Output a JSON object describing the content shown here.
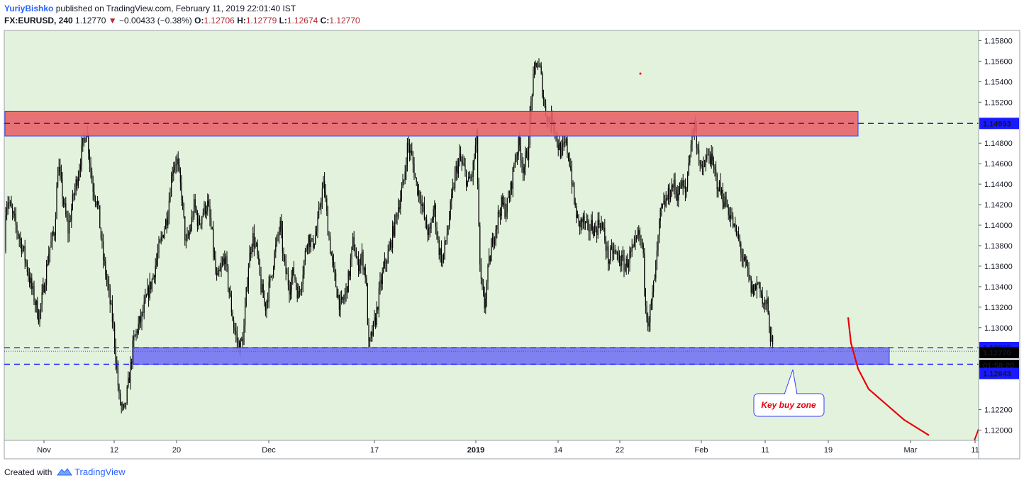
{
  "header": {
    "author": "YuriyBishko",
    "published": "published on TradingView.com, February 11, 2019 22:01:40 IST",
    "symbol": "FX:EURUSD, 240",
    "last": "1.12770",
    "change_arrow": "▼",
    "change": "−0.00433 (−0.38%)",
    "open_label": "O:",
    "open": "1.12706",
    "high_label": "H:",
    "high": "1.12779",
    "low_label": "L:",
    "low": "1.12674",
    "close_label": "C:",
    "close": "1.12770"
  },
  "footer": {
    "created_with": "Created with",
    "brand": "TradingView"
  },
  "colors": {
    "background": "#e2f2dc",
    "resistance_zone": "#e8646a",
    "support_zone": "#7a7af0",
    "dashed_line": "#1a1aff",
    "candles": "#000000",
    "forecast_arrow": "#e8000b"
  },
  "chart_data": {
    "type": "candlestick",
    "instrument": "FX:EURUSD",
    "timeframe": "240",
    "ylim": [
      1.119,
      1.159
    ],
    "y_ticks": [
      "1.15800",
      "1.15600",
      "1.15400",
      "1.15200",
      "1.14800",
      "1.14600",
      "1.14400",
      "1.14200",
      "1.14000",
      "1.13800",
      "1.13600",
      "1.13400",
      "1.13200",
      "1.13000",
      "1.12200",
      "1.12000"
    ],
    "x_ticks": [
      "Nov",
      "12",
      "20",
      "Dec",
      "17",
      "2019",
      "14",
      "22",
      "Feb",
      "11",
      "19",
      "Mar",
      "11"
    ],
    "price_labels": {
      "resistance": "1.14993",
      "support_top": "1.12805",
      "last": "1.12770",
      "countdown": "01:58:20",
      "support_bottom": "1.12643"
    },
    "zones": [
      {
        "name": "resistance",
        "from": 1.1487,
        "to": 1.1511
      },
      {
        "name": "support",
        "from": 1.12643,
        "to": 1.12805
      }
    ],
    "annotation": "Key buy zone",
    "path_points": [
      [
        1.1375,
        0
      ],
      [
        1.141,
        5
      ],
      [
        1.1425,
        11
      ],
      [
        1.14,
        22
      ],
      [
        1.1375,
        33
      ],
      [
        1.134,
        44
      ],
      [
        1.131,
        55
      ],
      [
        1.1345,
        63
      ],
      [
        1.1375,
        69
      ],
      [
        1.1395,
        77
      ],
      [
        1.146,
        82
      ],
      [
        1.142,
        90
      ],
      [
        1.1395,
        96
      ],
      [
        1.143,
        104
      ],
      [
        1.145,
        110
      ],
      [
        1.1475,
        116
      ],
      [
        1.1495,
        122
      ],
      [
        1.144,
        130
      ],
      [
        1.142,
        138
      ],
      [
        1.137,
        145
      ],
      [
        1.134,
        152
      ],
      [
        1.13,
        160
      ],
      [
        1.123,
        168
      ],
      [
        1.1215,
        175
      ],
      [
        1.125,
        182
      ],
      [
        1.1285,
        188
      ],
      [
        1.13,
        194
      ],
      [
        1.131,
        200
      ],
      [
        1.133,
        207
      ],
      [
        1.1345,
        214
      ],
      [
        1.137,
        222
      ],
      [
        1.139,
        229
      ],
      [
        1.141,
        236
      ],
      [
        1.1455,
        243
      ],
      [
        1.1465,
        249
      ],
      [
        1.143,
        256
      ],
      [
        1.138,
        262
      ],
      [
        1.1395,
        268
      ],
      [
        1.142,
        274
      ],
      [
        1.14,
        280
      ],
      [
        1.1415,
        287
      ],
      [
        1.142,
        293
      ],
      [
        1.139,
        299
      ],
      [
        1.1345,
        305
      ],
      [
        1.1355,
        311
      ],
      [
        1.137,
        317
      ],
      [
        1.133,
        324
      ],
      [
        1.13,
        330
      ],
      [
        1.128,
        337
      ],
      [
        1.129,
        343
      ],
      [
        1.136,
        350
      ],
      [
        1.139,
        356
      ],
      [
        1.1375,
        362
      ],
      [
        1.134,
        368
      ],
      [
        1.132,
        374
      ],
      [
        1.1345,
        381
      ],
      [
        1.1375,
        388
      ],
      [
        1.14,
        395
      ],
      [
        1.136,
        401
      ],
      [
        1.134,
        408
      ],
      [
        1.1355,
        414
      ],
      [
        1.133,
        421
      ],
      [
        1.136,
        428
      ],
      [
        1.139,
        434
      ],
      [
        1.138,
        440
      ],
      [
        1.1395,
        447
      ],
      [
        1.143,
        453
      ],
      [
        1.144,
        457
      ],
      [
        1.14,
        462
      ],
      [
        1.1365,
        468
      ],
      [
        1.134,
        474
      ],
      [
        1.132,
        480
      ],
      [
        1.133,
        486
      ],
      [
        1.135,
        492
      ],
      [
        1.1385,
        498
      ],
      [
        1.136,
        504
      ],
      [
        1.137,
        510
      ],
      [
        1.135,
        516
      ],
      [
        1.128,
        520
      ],
      [
        1.1295,
        525
      ],
      [
        1.131,
        530
      ],
      [
        1.134,
        536
      ],
      [
        1.136,
        542
      ],
      [
        1.1375,
        549
      ],
      [
        1.14,
        556
      ],
      [
        1.142,
        562
      ],
      [
        1.144,
        569
      ],
      [
        1.148,
        575
      ],
      [
        1.1465,
        581
      ],
      [
        1.144,
        587
      ],
      [
        1.1425,
        594
      ],
      [
        1.14,
        600
      ],
      [
        1.139,
        606
      ],
      [
        1.142,
        612
      ],
      [
        1.138,
        618
      ],
      [
        1.1365,
        624
      ],
      [
        1.139,
        630
      ],
      [
        1.142,
        636
      ],
      [
        1.145,
        642
      ],
      [
        1.1465,
        648
      ],
      [
        1.1455,
        654
      ],
      [
        1.144,
        660
      ],
      [
        1.145,
        666
      ],
      [
        1.1485,
        672
      ],
      [
        1.135,
        677
      ],
      [
        1.132,
        683
      ],
      [
        1.136,
        689
      ],
      [
        1.1385,
        695
      ],
      [
        1.1405,
        701
      ],
      [
        1.142,
        707
      ],
      [
        1.1415,
        713
      ],
      [
        1.143,
        719
      ],
      [
        1.1465,
        726
      ],
      [
        1.148,
        732
      ],
      [
        1.1455,
        738
      ],
      [
        1.147,
        744
      ],
      [
        1.153,
        750
      ],
      [
        1.156,
        756
      ],
      [
        1.155,
        762
      ],
      [
        1.1515,
        768
      ],
      [
        1.15,
        774
      ],
      [
        1.1505,
        780
      ],
      [
        1.148,
        786
      ],
      [
        1.147,
        792
      ],
      [
        1.148,
        798
      ],
      [
        1.146,
        804
      ],
      [
        1.142,
        810
      ],
      [
        1.14,
        816
      ],
      [
        1.1405,
        822
      ],
      [
        1.1395,
        828
      ],
      [
        1.14,
        834
      ],
      [
        1.1395,
        840
      ],
      [
        1.1405,
        846
      ],
      [
        1.139,
        852
      ],
      [
        1.1365,
        858
      ],
      [
        1.1375,
        864
      ],
      [
        1.137,
        870
      ],
      [
        1.1365,
        876
      ],
      [
        1.136,
        882
      ],
      [
        1.137,
        888
      ],
      [
        1.1375,
        894
      ],
      [
        1.139,
        900
      ],
      [
        1.138,
        906
      ],
      [
        1.133,
        910
      ],
      [
        1.1305,
        914
      ],
      [
        1.1325,
        919
      ],
      [
        1.136,
        925
      ],
      [
        1.141,
        931
      ],
      [
        1.142,
        937
      ],
      [
        1.143,
        943
      ],
      [
        1.144,
        949
      ],
      [
        1.143,
        955
      ],
      [
        1.144,
        961
      ],
      [
        1.143,
        967
      ],
      [
        1.1475,
        973
      ],
      [
        1.15,
        979
      ],
      [
        1.1475,
        984
      ],
      [
        1.145,
        989
      ],
      [
        1.146,
        994
      ],
      [
        1.147,
        1000
      ],
      [
        1.1455,
        1006
      ],
      [
        1.144,
        1012
      ],
      [
        1.143,
        1018
      ],
      [
        1.142,
        1024
      ],
      [
        1.141,
        1030
      ],
      [
        1.1395,
        1036
      ],
      [
        1.1385,
        1042
      ],
      [
        1.1365,
        1048
      ],
      [
        1.1355,
        1054
      ],
      [
        1.1335,
        1060
      ],
      [
        1.134,
        1066
      ],
      [
        1.1345,
        1071
      ],
      [
        1.132,
        1076
      ],
      [
        1.1325,
        1081
      ],
      [
        1.13,
        1085
      ],
      [
        1.1275,
        1090
      ]
    ],
    "forecast_path": [
      [
        1.131,
        1196
      ],
      [
        1.1285,
        1200
      ],
      [
        1.126,
        1210
      ],
      [
        1.124,
        1225
      ],
      [
        1.1225,
        1250
      ],
      [
        1.121,
        1275
      ],
      [
        1.1195,
        1310
      ]
    ]
  }
}
